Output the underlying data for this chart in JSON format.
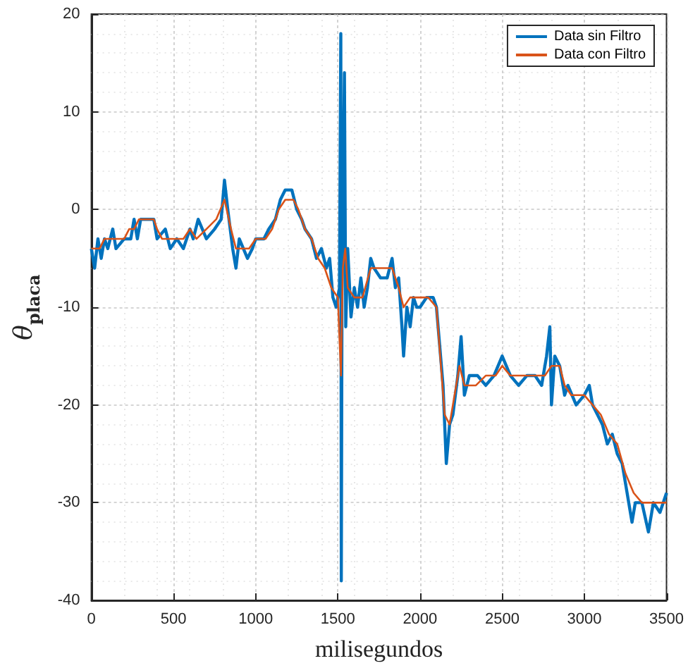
{
  "chart_data": {
    "type": "line",
    "xlabel": "milisegundos",
    "ylabel": "θ$_{placa}$",
    "xlim": [
      0,
      3500
    ],
    "xticks": [
      0,
      500,
      1000,
      1500,
      2000,
      2500,
      3000,
      3500
    ],
    "ylim": [
      -40,
      20
    ],
    "yticks": [
      -40,
      -30,
      -20,
      -10,
      0,
      10,
      20
    ],
    "grid": true,
    "legend": "top right",
    "marker": "none",
    "line_style": "solid",
    "series": [
      {
        "name": "Data sin Filtro",
        "color": "#0072bd",
        "x": [
          0,
          20,
          40,
          60,
          80,
          100,
          130,
          150,
          200,
          240,
          260,
          280,
          300,
          340,
          380,
          400,
          450,
          480,
          520,
          560,
          600,
          620,
          650,
          700,
          750,
          790,
          810,
          830,
          860,
          880,
          900,
          950,
          980,
          1000,
          1050,
          1080,
          1120,
          1150,
          1180,
          1220,
          1250,
          1280,
          1300,
          1340,
          1370,
          1400,
          1430,
          1450,
          1470,
          1490,
          1510,
          1518,
          1521,
          1525,
          1540,
          1548,
          1560,
          1580,
          1600,
          1620,
          1640,
          1660,
          1680,
          1700,
          1720,
          1760,
          1800,
          1830,
          1850,
          1870,
          1890,
          1900,
          1920,
          1940,
          1960,
          1980,
          2000,
          2040,
          2080,
          2100,
          2140,
          2160,
          2180,
          2200,
          2230,
          2250,
          2270,
          2300,
          2350,
          2400,
          2450,
          2500,
          2550,
          2600,
          2650,
          2700,
          2740,
          2770,
          2790,
          2800,
          2820,
          2850,
          2880,
          2900,
          2950,
          3000,
          3030,
          3050,
          3080,
          3110,
          3140,
          3170,
          3200,
          3230,
          3260,
          3290,
          3310,
          3350,
          3390,
          3420,
          3460,
          3500
        ],
        "values": [
          -4,
          -6,
          -3,
          -5,
          -3,
          -4,
          -2,
          -4,
          -3,
          -3,
          -1,
          -3,
          -1,
          -1,
          -1,
          -3,
          -2,
          -4,
          -3,
          -4,
          -2,
          -3,
          -1,
          -3,
          -2,
          -1,
          3,
          0,
          -4,
          -6,
          -3,
          -5,
          -4,
          -3,
          -3,
          -2,
          -1,
          1,
          2,
          2,
          0,
          -1,
          -2,
          -3,
          -5,
          -4,
          -6,
          -5,
          -9,
          -10,
          -8,
          18,
          -38,
          -9,
          14,
          -12,
          -4,
          -11,
          -8,
          -10,
          -7,
          -10,
          -8,
          -5,
          -6,
          -7,
          -7,
          -5,
          -8,
          -7,
          -12,
          -15,
          -10,
          -12,
          -9,
          -10,
          -10,
          -9,
          -9,
          -10,
          -18,
          -26,
          -22,
          -21,
          -17,
          -13,
          -19,
          -17,
          -17,
          -18,
          -17,
          -15,
          -17,
          -18,
          -17,
          -17,
          -18,
          -15,
          -12,
          -20,
          -15,
          -16,
          -19,
          -18,
          -20,
          -19,
          -18,
          -20,
          -21,
          -22,
          -24,
          -23,
          -25,
          -26,
          -29,
          -32,
          -30,
          -30,
          -33,
          -30,
          -31,
          -29
        ]
      },
      {
        "name": "Data con Filtro",
        "color": "#d95319",
        "x": [
          0,
          50,
          80,
          150,
          200,
          230,
          260,
          290,
          380,
          400,
          430,
          560,
          600,
          640,
          700,
          760,
          810,
          850,
          880,
          920,
          960,
          1000,
          1060,
          1100,
          1140,
          1180,
          1230,
          1260,
          1300,
          1340,
          1380,
          1420,
          1460,
          1500,
          1519,
          1530,
          1545,
          1560,
          1600,
          1650,
          1700,
          1780,
          1830,
          1870,
          1900,
          1940,
          1980,
          2050,
          2100,
          2150,
          2180,
          2200,
          2240,
          2270,
          2340,
          2400,
          2460,
          2500,
          2550,
          2650,
          2720,
          2760,
          2800,
          2850,
          2880,
          2920,
          3000,
          3050,
          3100,
          3150,
          3200,
          3250,
          3300,
          3350,
          3400,
          3450,
          3500
        ],
        "values": [
          -4,
          -4,
          -3,
          -3,
          -3,
          -2,
          -2,
          -1,
          -1,
          -2,
          -3,
          -3,
          -2,
          -3,
          -2,
          -1,
          1,
          -2,
          -4,
          -4,
          -4,
          -3,
          -3,
          -2,
          0,
          1,
          1,
          0,
          -2,
          -3,
          -5,
          -6,
          -8,
          -9,
          -17,
          -6,
          -4,
          -8,
          -9,
          -9,
          -6,
          -6,
          -6,
          -8,
          -10,
          -9,
          -9,
          -9,
          -10,
          -21,
          -22,
          -20,
          -16,
          -18,
          -18,
          -17,
          -17,
          -16,
          -17,
          -17,
          -17,
          -17,
          -16,
          -16,
          -18,
          -19,
          -19,
          -20,
          -21,
          -23,
          -24,
          -27,
          -29,
          -30,
          -30,
          -30,
          -30
        ]
      }
    ]
  }
}
